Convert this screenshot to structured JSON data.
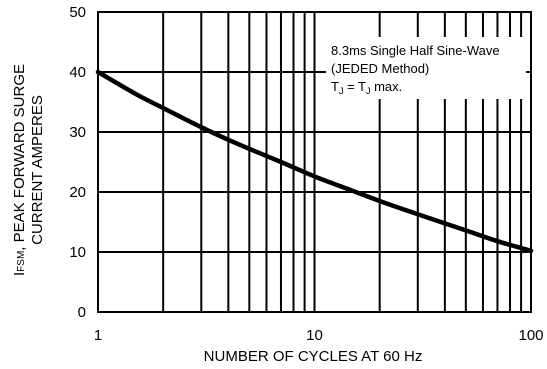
{
  "chart_data": {
    "type": "line",
    "xscale": "log",
    "xlim": [
      1,
      100
    ],
    "ylim": [
      0,
      50
    ],
    "grid": true,
    "xlabel": "NUMBER OF CYCLES AT 60 Hz",
    "ylabel_prefix": "I",
    "ylabel_sub": "FSM",
    "ylabel_line1_rest": ", PEAK FORWARD SURGE",
    "ylabel_line2": "CURRENT AMPERES",
    "x_tick_labels": [
      "1",
      "10",
      "100"
    ],
    "y_tick_labels": [
      "0",
      "10",
      "20",
      "30",
      "40",
      "50"
    ],
    "annotation": {
      "line1": "8.3ms Single Half Sine-Wave",
      "line2": "(JEDED Method)",
      "line3_t": "T",
      "line3_sub": "J",
      "line3_mid": " = T",
      "line3_end": " max."
    },
    "series": [
      {
        "x": [
          1,
          1.5,
          2,
          3,
          4,
          5,
          7,
          10,
          15,
          20,
          30,
          50,
          70,
          100
        ],
        "y": [
          40,
          36.3,
          34,
          30.8,
          28.7,
          27.2,
          25,
          22.6,
          20.2,
          18.5,
          16.3,
          13.6,
          11.8,
          10.2
        ]
      }
    ]
  }
}
